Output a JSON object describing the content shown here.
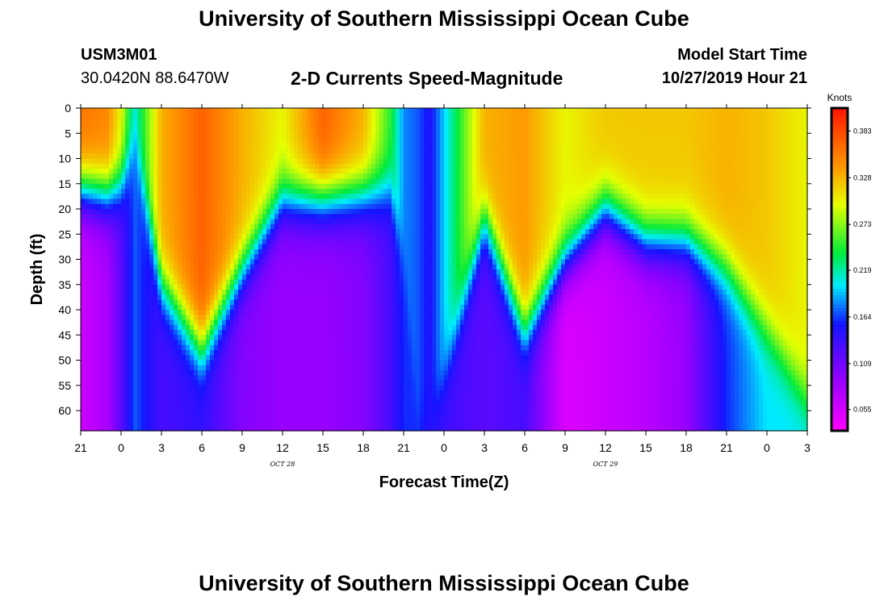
{
  "header": {
    "title": "University of Southern Mississippi Ocean Cube",
    "station_id": "USM3M01",
    "coords": "30.0420N 88.6470W",
    "chart_title": "2-D Currents Speed-Magnitude",
    "model_start_label": "Model Start Time",
    "model_start_time": "10/27/2019 Hour 21"
  },
  "footer": {
    "title": "University of Southern Mississippi Ocean Cube"
  },
  "chart_data": {
    "type": "heatmap",
    "title": "2-D Currents Speed-Magnitude",
    "xlabel": "Forecast Time(Z)",
    "ylabel": "Depth (ft)",
    "x_start_hour": 0,
    "x_end_hour": 54,
    "x_ticks": [
      "21",
      "0",
      "3",
      "6",
      "9",
      "12",
      "15",
      "18",
      "21",
      "0",
      "3",
      "6",
      "9",
      "12",
      "15",
      "18",
      "21",
      "0",
      "3"
    ],
    "date_labels": [
      {
        "text": "OCT 28",
        "hour": 15
      },
      {
        "text": "OCT 29",
        "hour": 39
      }
    ],
    "ylim": [
      0,
      64
    ],
    "y_ticks": [
      "0",
      "5",
      "10",
      "15",
      "20",
      "25",
      "30",
      "35",
      "40",
      "45",
      "50",
      "55",
      "60"
    ],
    "colorbar": {
      "unit": "Knots",
      "range": [
        0.03,
        0.41
      ],
      "ticks": [
        "0.383",
        "0.328",
        "0.273",
        "0.219",
        "0.164",
        "0.109",
        "0.055"
      ]
    },
    "profiles": {
      "hours": [
        0,
        2,
        3,
        4,
        6,
        9,
        12,
        15,
        18,
        21,
        23,
        24,
        25,
        26,
        30,
        33,
        36,
        39,
        42,
        45,
        48,
        51,
        54
      ],
      "max": [
        0.36,
        0.35,
        0.3,
        0.21,
        0.33,
        0.37,
        0.33,
        0.3,
        0.37,
        0.33,
        0.25,
        0.18,
        0.17,
        0.15,
        0.33,
        0.34,
        0.3,
        0.32,
        0.32,
        0.32,
        0.33,
        0.32,
        0.3
      ],
      "mid": [
        16,
        17,
        15,
        7,
        35,
        48,
        32,
        18,
        18,
        17,
        16,
        30,
        60,
        64,
        22,
        44,
        30,
        20,
        26,
        26,
        32,
        44,
        58
      ],
      "min": [
        0.06,
        0.08,
        0.12,
        0.17,
        0.13,
        0.14,
        0.1,
        0.09,
        0.09,
        0.1,
        0.13,
        0.16,
        0.16,
        0.14,
        0.12,
        0.13,
        0.05,
        0.06,
        0.07,
        0.09,
        0.16,
        0.2,
        0.2
      ]
    }
  }
}
